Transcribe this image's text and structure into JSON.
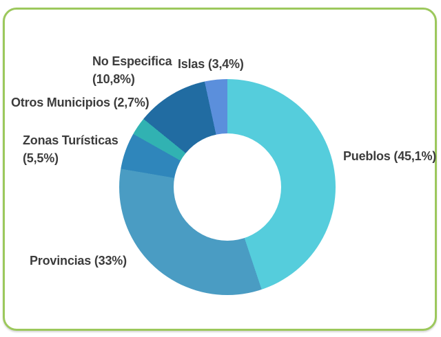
{
  "frame": {
    "border_color": "#9cc85c",
    "background": "#ffffff"
  },
  "text_color": "#3c3c3c",
  "chart_data": {
    "type": "pie",
    "subtype": "donut",
    "title": "",
    "start_angle_deg": 0,
    "direction": "clockwise",
    "inner_radius_ratio": 0.5,
    "hole_color": "#ffffff",
    "legend_position": "labels-around-chart",
    "segments": [
      {
        "label": "Pueblos",
        "value": 45.1,
        "display": "Pueblos (45,1%)",
        "color": "#55cddc"
      },
      {
        "label": "Provincias",
        "value": 33,
        "display": "Provincias (33%)",
        "color": "#4a9cc3"
      },
      {
        "label": "Zonas Turísticas",
        "value": 5.5,
        "display": "Zonas Turísticas (5,5%)",
        "color": "#2f86bb"
      },
      {
        "label": "Otros Municipios",
        "value": 2.7,
        "display": "Otros Municipios (2,7%)",
        "color": "#31b2b2"
      },
      {
        "label": "No Especifica",
        "value": 10.8,
        "display": "No Especifica (10,8%)",
        "color": "#216ca2"
      },
      {
        "label": "Islas",
        "value": 3.4,
        "display": "Islas (3,4%)",
        "color": "#5b8fdc"
      }
    ]
  },
  "labels": {
    "no_especifica_1": "No Especifica",
    "no_especifica_2": "(10,8%)",
    "islas": "Islas (3,4%)",
    "otros_municipios": "Otros Municipios (2,7%)",
    "zonas_1": "Zonas Turísticas",
    "zonas_2": "(5,5%)",
    "pueblos": "Pueblos (45,1%)",
    "provincias": "Provincias (33%)"
  }
}
